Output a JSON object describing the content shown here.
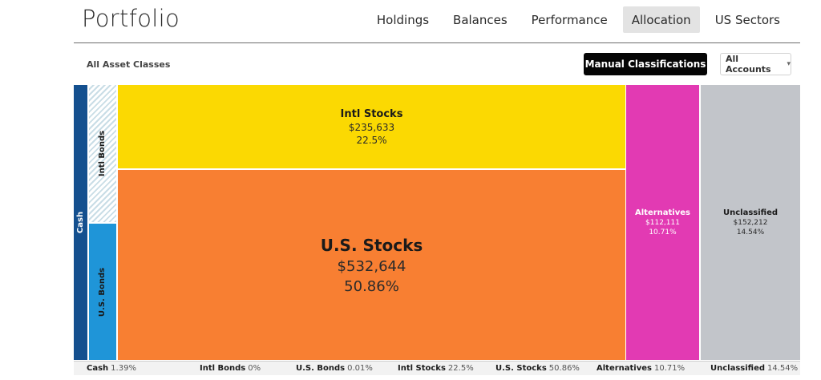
{
  "header": {
    "brand": "Portfolio",
    "tabs": [
      {
        "label": "Holdings"
      },
      {
        "label": "Balances"
      },
      {
        "label": "Performance"
      },
      {
        "label": "Allocation",
        "active": true
      },
      {
        "label": "US Sectors"
      }
    ]
  },
  "toolbar": {
    "subtitle": "All Asset Classes",
    "manual_label": "Manual Classifications",
    "accounts_label": "All Accounts",
    "accounts_chevron": "▾"
  },
  "colors": {
    "cash": "#14508f",
    "intl_bonds": "#c9dde6",
    "us_bonds": "#1f95d8",
    "intl_stocks": "#fbd902",
    "us_stocks": "#f87f32",
    "alternatives": "#e23ab3",
    "unclassified": "#c2c5ca"
  },
  "treemap": {
    "cash": {
      "name": "Cash"
    },
    "intl_bonds": {
      "name": "Intl Bonds"
    },
    "us_bonds": {
      "name": "U.S. Bonds"
    },
    "intl_stocks": {
      "name": "Intl Stocks",
      "value": "$235,633",
      "percent": "22.5%"
    },
    "us_stocks": {
      "name": "U.S. Stocks",
      "value": "$532,644",
      "percent": "50.86%"
    },
    "alternatives": {
      "name": "Alternatives",
      "value": "$112,111",
      "percent": "10.71%"
    },
    "unclassified": {
      "name": "Unclassified",
      "value": "$152,212",
      "percent": "14.54%"
    }
  },
  "legend": [
    {
      "name": "Cash",
      "percent": "1.39%"
    },
    {
      "name": "Intl Bonds",
      "percent": "0%"
    },
    {
      "name": "U.S. Bonds",
      "percent": "0.01%"
    },
    {
      "name": "Intl Stocks",
      "percent": "22.5%"
    },
    {
      "name": "U.S. Stocks",
      "percent": "50.86%"
    },
    {
      "name": "Alternatives",
      "percent": "10.71%"
    },
    {
      "name": "Unclassified",
      "percent": "14.54%"
    }
  ]
}
